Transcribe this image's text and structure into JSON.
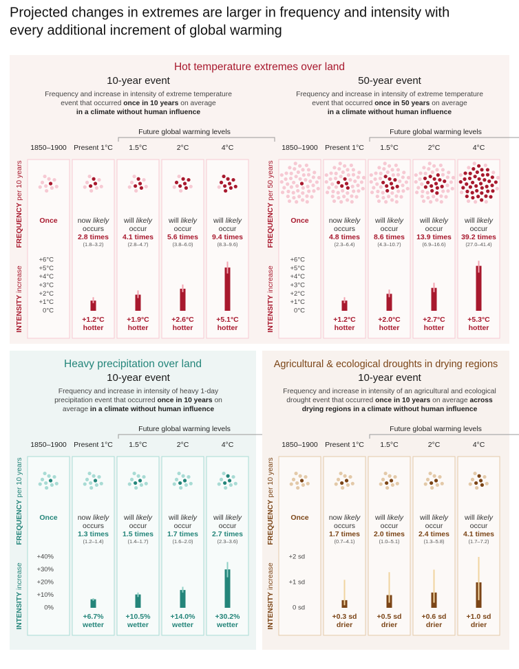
{
  "title": [
    "Projected changes in extremes are larger in frequency and intensity with",
    "every additional increment of global warming"
  ],
  "panels": [
    {
      "heading": "Hot temperature extremes over land",
      "color": "#a8192e",
      "light": "#f6c9d3",
      "error_color": "#f2a3b0",
      "background": "#faf3f1",
      "subcharts": [
        {
          "event": "10-year event",
          "description": [
            [
              {
                "text": "Frequency and increase in intensity of extreme temperature"
              }
            ],
            [
              {
                "text": "event that occurred "
              },
              {
                "text": "once in 10 years",
                "bold": true
              },
              {
                "text": " on average"
              }
            ],
            [
              {
                "text": "in a climate without human influence",
                "bold": true
              }
            ]
          ],
          "future_label": "Future global warming levels",
          "frequency_axis": [
            "FREQUENCY",
            "per 10 years"
          ],
          "intensity_axis": [
            "INTENSITY",
            "increase"
          ],
          "dot_total": 10,
          "ylim": [
            0,
            6
          ],
          "yticks": [
            {
              "value": 6,
              "label": "+6°C"
            },
            {
              "value": 5,
              "label": "+5°C"
            },
            {
              "value": 4,
              "label": "+4°C"
            },
            {
              "value": 3,
              "label": "+3°C"
            },
            {
              "value": 2,
              "label": "+2°C"
            },
            {
              "value": 1,
              "label": "+1°C"
            },
            {
              "value": 0,
              "label": "0°C"
            }
          ],
          "word": "hotter",
          "columns": [
            {
              "header": "1850–1900",
              "frequency": {
                "value": 1,
                "value_label": "Once"
              }
            },
            {
              "header": "Present 1°C",
              "frequency": {
                "qualifier": "now",
                "likely": "likely",
                "verb": "occurs",
                "value": 2.8,
                "value_label": "2.8 times",
                "range": "(1.8–3.2)"
              },
              "intensity": {
                "value": 1.2,
                "value_label": "+1.2°C",
                "range": [
                  0.9,
                  1.6
                ]
              }
            },
            {
              "header": "1.5°C",
              "frequency": {
                "qualifier": "will",
                "likely": "likely",
                "verb": "occur",
                "value": 4.1,
                "value_label": "4.1 times",
                "range": "(2.8–4.7)"
              },
              "intensity": {
                "value": 1.9,
                "value_label": "+1.9°C",
                "range": [
                  1.5,
                  2.4
                ]
              }
            },
            {
              "header": "2°C",
              "frequency": {
                "qualifier": "will",
                "likely": "likely",
                "verb": "occur",
                "value": 5.6,
                "value_label": "5.6 times",
                "range": "(3.8–6.0)"
              },
              "intensity": {
                "value": 2.6,
                "value_label": "+2.6°C",
                "range": [
                  2.2,
                  3.1
                ]
              }
            },
            {
              "header": "4°C",
              "frequency": {
                "qualifier": "will",
                "likely": "likely",
                "verb": "occur",
                "value": 9.4,
                "value_label": "9.4 times",
                "range": "(8.3–9.6)"
              },
              "intensity": {
                "value": 5.1,
                "value_label": "+5.1°C",
                "range": [
                  4.4,
                  5.8
                ]
              }
            }
          ]
        },
        {
          "event": "50-year event",
          "description": [
            [
              {
                "text": "Frequency and increase in intensity of extreme temperature"
              }
            ],
            [
              {
                "text": "event that occurred "
              },
              {
                "text": "once in 50 years",
                "bold": true
              },
              {
                "text": " on average"
              }
            ],
            [
              {
                "text": "in a climate without human influence",
                "bold": true
              }
            ]
          ],
          "future_label": "Future global warming levels",
          "frequency_axis": [
            "FREQUENCY",
            "per 50 years"
          ],
          "intensity_axis": [
            "INTENSITY",
            "increase"
          ],
          "dot_total": 50,
          "ylim": [
            0,
            6
          ],
          "yticks": [
            {
              "value": 6,
              "label": "+6°C"
            },
            {
              "value": 5,
              "label": "+5°C"
            },
            {
              "value": 4,
              "label": "+4°C"
            },
            {
              "value": 3,
              "label": "+3°C"
            },
            {
              "value": 2,
              "label": "+2°C"
            },
            {
              "value": 1,
              "label": "+1°C"
            },
            {
              "value": 0,
              "label": "0°C"
            }
          ],
          "word": "hotter",
          "columns": [
            {
              "header": "1850–1900",
              "frequency": {
                "value": 1,
                "value_label": "Once"
              }
            },
            {
              "header": "Present 1°C",
              "frequency": {
                "qualifier": "now",
                "likely": "likely",
                "verb": "occurs",
                "value": 4.8,
                "value_label": "4.8 times",
                "range": "(2.3–6.4)"
              },
              "intensity": {
                "value": 1.2,
                "value_label": "+1.2°C",
                "range": [
                  0.9,
                  1.6
                ]
              }
            },
            {
              "header": "1.5°C",
              "frequency": {
                "qualifier": "will",
                "likely": "likely",
                "verb": "occur",
                "value": 8.6,
                "value_label": "8.6 times",
                "range": "(4.3–10.7)"
              },
              "intensity": {
                "value": 2.0,
                "value_label": "+2.0°C",
                "range": [
                  1.6,
                  2.5
                ]
              }
            },
            {
              "header": "2°C",
              "frequency": {
                "qualifier": "will",
                "likely": "likely",
                "verb": "occur",
                "value": 13.9,
                "value_label": "13.9 times",
                "range": "(6.9–16.6)"
              },
              "intensity": {
                "value": 2.7,
                "value_label": "+2.7°C",
                "range": [
                  2.2,
                  3.3
                ]
              }
            },
            {
              "header": "4°C",
              "frequency": {
                "qualifier": "will",
                "likely": "likely",
                "verb": "occur",
                "value": 39.2,
                "value_label": "39.2 times",
                "range": "(27.0–41.4)"
              },
              "intensity": {
                "value": 5.3,
                "value_label": "+5.3°C",
                "range": [
                  4.5,
                  5.9
                ]
              }
            }
          ]
        }
      ]
    },
    {
      "heading": "Heavy precipitation over land",
      "color": "#24857a",
      "light": "#a8dbd4",
      "error_color": "#8fd0c6",
      "background": "#eef5f4",
      "subcharts": [
        {
          "event": "10-year event",
          "description": [
            [
              {
                "text": "Frequency and increase in intensity of heavy 1-day"
              }
            ],
            [
              {
                "text": "precipitation event that occurred "
              },
              {
                "text": "once in 10 years",
                "bold": true
              },
              {
                "text": " on"
              }
            ],
            [
              {
                "text": "average "
              },
              {
                "text": "in a climate without human influence",
                "bold": true
              }
            ]
          ],
          "future_label": "Future global warming levels",
          "frequency_axis": [
            "FREQUENCY",
            "per 10 years"
          ],
          "intensity_axis": [
            "INTENSITY",
            "increase"
          ],
          "dot_total": 10,
          "ylim": [
            0,
            40
          ],
          "yticks": [
            {
              "value": 40,
              "label": "+40%"
            },
            {
              "value": 30,
              "label": "+30%"
            },
            {
              "value": 20,
              "label": "+20%"
            },
            {
              "value": 10,
              "label": "+10%"
            },
            {
              "value": 0,
              "label": "0%"
            }
          ],
          "word": "wetter",
          "columns": [
            {
              "header": "1850–1900",
              "frequency": {
                "value": 1,
                "value_label": "Once"
              }
            },
            {
              "header": "Present 1°C",
              "frequency": {
                "qualifier": "now",
                "likely": "likely",
                "verb": "occurs",
                "value": 1.3,
                "value_label": "1.3 times",
                "range": "(1.2–1.4)"
              },
              "intensity": {
                "value": 6.7,
                "value_label": "+6.7%",
                "range": [
                  5.5,
                  7.5
                ]
              }
            },
            {
              "header": "1.5°C",
              "frequency": {
                "qualifier": "will",
                "likely": "likely",
                "verb": "occur",
                "value": 1.5,
                "value_label": "1.5 times",
                "range": "(1.4–1.7)"
              },
              "intensity": {
                "value": 10.5,
                "value_label": "+10.5%",
                "range": [
                  8.5,
                  12.0
                ]
              }
            },
            {
              "header": "2°C",
              "frequency": {
                "qualifier": "will",
                "likely": "likely",
                "verb": "occur",
                "value": 1.7,
                "value_label": "1.7 times",
                "range": "(1.6–2.0)"
              },
              "intensity": {
                "value": 14.0,
                "value_label": "+14.0%",
                "range": [
                  12.0,
                  16.5
                ]
              }
            },
            {
              "header": "4°C",
              "frequency": {
                "qualifier": "will",
                "likely": "likely",
                "verb": "occur",
                "value": 2.7,
                "value_label": "2.7 times",
                "range": "(2.3–3.6)"
              },
              "intensity": {
                "value": 30.2,
                "value_label": "+30.2%",
                "range": [
                  24,
                  36
                ]
              }
            }
          ]
        }
      ]
    },
    {
      "heading": "Agricultural & ecological droughts in drying regions",
      "color": "#7b4517",
      "light": "#e3c9a8",
      "error_color": "#f0d49f",
      "background": "#f8f2ee",
      "subcharts": [
        {
          "event": "10-year event",
          "description": [
            [
              {
                "text": "Frequency and increase in intensity of an agricultural and ecological"
              }
            ],
            [
              {
                "text": "drought event that occurred "
              },
              {
                "text": "once in 10 years",
                "bold": true
              },
              {
                "text": " on average "
              },
              {
                "text": "across",
                "bold": true
              }
            ],
            [
              {
                "text": "drying regions in a climate without human influence",
                "bold": true
              }
            ]
          ],
          "future_label": "Future global warming levels",
          "frequency_axis": [
            "FREQUENCY",
            "per 10 years"
          ],
          "intensity_axis": [
            "INTENSITY",
            "increase"
          ],
          "dot_total": 10,
          "ylim": [
            0,
            2
          ],
          "yticks": [
            {
              "value": 2,
              "label": "+2 sd"
            },
            {
              "value": 1,
              "label": "+1 sd"
            },
            {
              "value": 0,
              "label": "0 sd"
            }
          ],
          "word": "drier",
          "columns": [
            {
              "header": "1850–1900",
              "frequency": {
                "value": 1,
                "value_label": "Once"
              }
            },
            {
              "header": "Present 1°C",
              "frequency": {
                "qualifier": "now",
                "likely": "likely",
                "verb": "occurs",
                "value": 1.7,
                "value_label": "1.7 times",
                "range": "(0.7–4.1)"
              },
              "intensity": {
                "value": 0.3,
                "value_label": "+0.3 sd",
                "range": [
                  0.1,
                  1.1
                ]
              }
            },
            {
              "header": "1.5°C",
              "frequency": {
                "qualifier": "will",
                "likely": "likely",
                "verb": "occur",
                "value": 2.0,
                "value_label": "2.0 times",
                "range": "(1.0–5.1)"
              },
              "intensity": {
                "value": 0.5,
                "value_label": "+0.5 sd",
                "range": [
                  0.2,
                  1.4
                ]
              }
            },
            {
              "header": "2°C",
              "frequency": {
                "qualifier": "will",
                "likely": "likely",
                "verb": "occur",
                "value": 2.4,
                "value_label": "2.4 times",
                "range": "(1.3–5.8)"
              },
              "intensity": {
                "value": 0.6,
                "value_label": "+0.6 sd",
                "range": [
                  0.2,
                  1.5
                ]
              }
            },
            {
              "header": "4°C",
              "frequency": {
                "qualifier": "will",
                "likely": "likely",
                "verb": "occur",
                "value": 4.1,
                "value_label": "4.1 times",
                "range": "(1.7–7.2)"
              },
              "intensity": {
                "value": 1.0,
                "value_label": "+1.0 sd",
                "range": [
                  0.3,
                  2.0
                ]
              }
            }
          ]
        }
      ]
    }
  ]
}
